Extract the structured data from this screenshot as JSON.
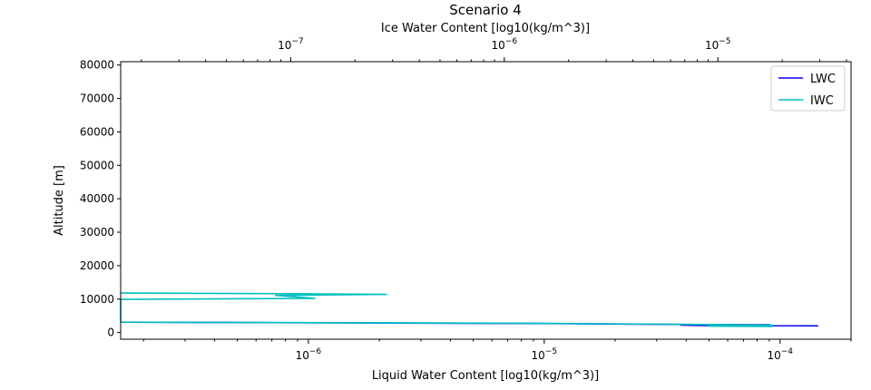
{
  "chart_data": {
    "type": "line",
    "title": "Scenario 4",
    "xlabel": "Liquid Water Content [log10(kg/m^3)]",
    "x2label": "Ice Water Content [log10(kg/m^3)]",
    "ylabel": "Altitude [m]",
    "xscale": "log",
    "x2scale": "log",
    "xlim": [
      1.6e-07,
      0.0002
    ],
    "x2lim": [
      1.6e-08,
      4.2e-05
    ],
    "ylim": [
      -2000,
      81000
    ],
    "x_tick_labels": [
      {
        "value": 1e-06,
        "label": "10^-6"
      },
      {
        "value": 1e-05,
        "label": "10^-5"
      },
      {
        "value": 0.0001,
        "label": "10^-4"
      }
    ],
    "x2_tick_labels": [
      {
        "value": 1e-07,
        "label": "10^-7"
      },
      {
        "value": 1e-06,
        "label": "10^-6"
      },
      {
        "value": 1e-05,
        "label": "10^-5"
      }
    ],
    "y_ticks": [
      0,
      10000,
      20000,
      30000,
      40000,
      50000,
      60000,
      70000,
      80000
    ],
    "grid": false,
    "legend": {
      "position": "top-right"
    },
    "series": [
      {
        "name": "LWC",
        "axis": "bottom",
        "color": "#0000ff",
        "points": [
          {
            "x": 1.6e-07,
            "y": 3100
          },
          {
            "x": 1e-05,
            "y": 2700
          },
          {
            "x": 3e-05,
            "y": 2450
          },
          {
            "x": 9e-05,
            "y": 2300
          },
          {
            "x": 3.8e-05,
            "y": 2200
          },
          {
            "x": 5e-05,
            "y": 2100
          },
          {
            "x": 0.000145,
            "y": 2000
          }
        ]
      },
      {
        "name": "IWC",
        "axis": "top",
        "color": "#00bfbf",
        "points": [
          {
            "x": 1.6e-08,
            "y": 11800
          },
          {
            "x": 1.2e-07,
            "y": 11600
          },
          {
            "x": 2.8e-07,
            "y": 11400
          },
          {
            "x": 8.5e-08,
            "y": 11100
          },
          {
            "x": 1.3e-07,
            "y": 10200
          },
          {
            "x": 1.6e-08,
            "y": 9900
          },
          {
            "x": 1.6e-08,
            "y": 3100
          },
          {
            "x": 1e-06,
            "y": 2800
          },
          {
            "x": 3e-06,
            "y": 2600
          },
          {
            "x": 9e-06,
            "y": 2400
          },
          {
            "x": 1.8e-05,
            "y": 2200
          },
          {
            "x": 1.6e-05,
            "y": 2000
          },
          {
            "x": 9e-06,
            "y": 1900
          },
          {
            "x": 1.8e-05,
            "y": 1800
          }
        ]
      }
    ]
  }
}
